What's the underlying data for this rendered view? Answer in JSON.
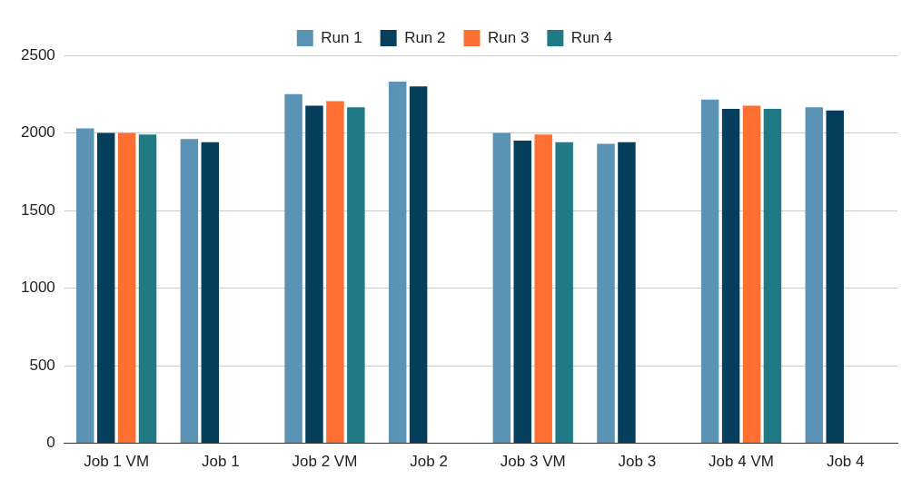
{
  "chart_data": {
    "type": "bar",
    "categories": [
      "Job 1 VM",
      "Job 1",
      "Job 2 VM",
      "Job 2",
      "Job 3 VM",
      "Job 3",
      "Job 4 VM",
      "Job 4"
    ],
    "series": [
      {
        "name": "Run 1",
        "color": "#5b93b4",
        "values": [
          2030,
          1960,
          2250,
          2330,
          2000,
          1930,
          2215,
          2165
        ]
      },
      {
        "name": "Run 2",
        "color": "#063f5c",
        "values": [
          2000,
          1940,
          2175,
          2300,
          1950,
          1940,
          2155,
          2145
        ]
      },
      {
        "name": "Run 3",
        "color": "#ff6f31",
        "values": [
          2000,
          null,
          2205,
          null,
          1990,
          null,
          2175,
          null
        ]
      },
      {
        "name": "Run 4",
        "color": "#1f7a86",
        "values": [
          1990,
          null,
          2165,
          null,
          1940,
          null,
          2155,
          null
        ]
      }
    ],
    "ylim": [
      0,
      2500
    ],
    "yticks": [
      0,
      500,
      1000,
      1500,
      2000,
      2500
    ],
    "grid": "y",
    "legend": "top"
  }
}
